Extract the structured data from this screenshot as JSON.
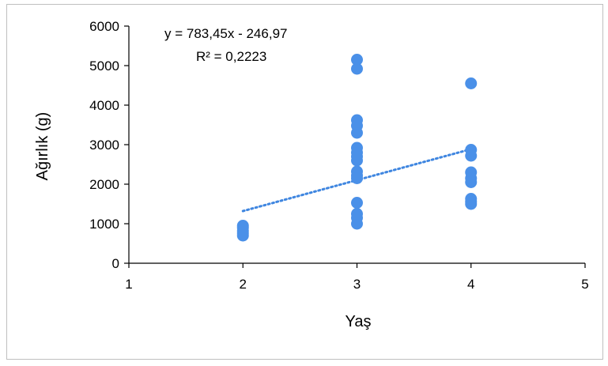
{
  "chart_data": {
    "type": "scatter",
    "xlabel": "Yaş",
    "ylabel": "Ağırlık (g)",
    "xlim": [
      1,
      5
    ],
    "ylim": [
      0,
      6000
    ],
    "x_ticks": [
      "1",
      "2",
      "3",
      "4",
      "5"
    ],
    "y_ticks": [
      "0",
      "1000",
      "2000",
      "3000",
      "4000",
      "5000",
      "6000"
    ],
    "grid": false,
    "legend": "none",
    "marker_color": "#4a90e8",
    "trendline_color": "#3f86e0",
    "points": [
      {
        "x": 2,
        "y": 950
      },
      {
        "x": 2,
        "y": 900
      },
      {
        "x": 2,
        "y": 820
      },
      {
        "x": 2,
        "y": 760
      },
      {
        "x": 2,
        "y": 700
      },
      {
        "x": 3,
        "y": 5150
      },
      {
        "x": 3,
        "y": 4920
      },
      {
        "x": 3,
        "y": 3620
      },
      {
        "x": 3,
        "y": 3480
      },
      {
        "x": 3,
        "y": 3300
      },
      {
        "x": 3,
        "y": 2920
      },
      {
        "x": 3,
        "y": 2800
      },
      {
        "x": 3,
        "y": 2700
      },
      {
        "x": 3,
        "y": 2600
      },
      {
        "x": 3,
        "y": 2320
      },
      {
        "x": 3,
        "y": 2220
      },
      {
        "x": 3,
        "y": 2150
      },
      {
        "x": 3,
        "y": 1530
      },
      {
        "x": 3,
        "y": 1250
      },
      {
        "x": 3,
        "y": 1150
      },
      {
        "x": 3,
        "y": 1000
      },
      {
        "x": 4,
        "y": 4550
      },
      {
        "x": 4,
        "y": 2870
      },
      {
        "x": 4,
        "y": 2720
      },
      {
        "x": 4,
        "y": 2300
      },
      {
        "x": 4,
        "y": 2150
      },
      {
        "x": 4,
        "y": 2050
      },
      {
        "x": 4,
        "y": 1630
      },
      {
        "x": 4,
        "y": 1560
      },
      {
        "x": 4,
        "y": 1500
      }
    ],
    "trendline": {
      "slope": 783.45,
      "intercept": -246.97,
      "x_range": [
        2,
        4
      ],
      "equation_text": "y = 783,45x - 246,97",
      "r2_text": "R² = 0,2223"
    }
  }
}
